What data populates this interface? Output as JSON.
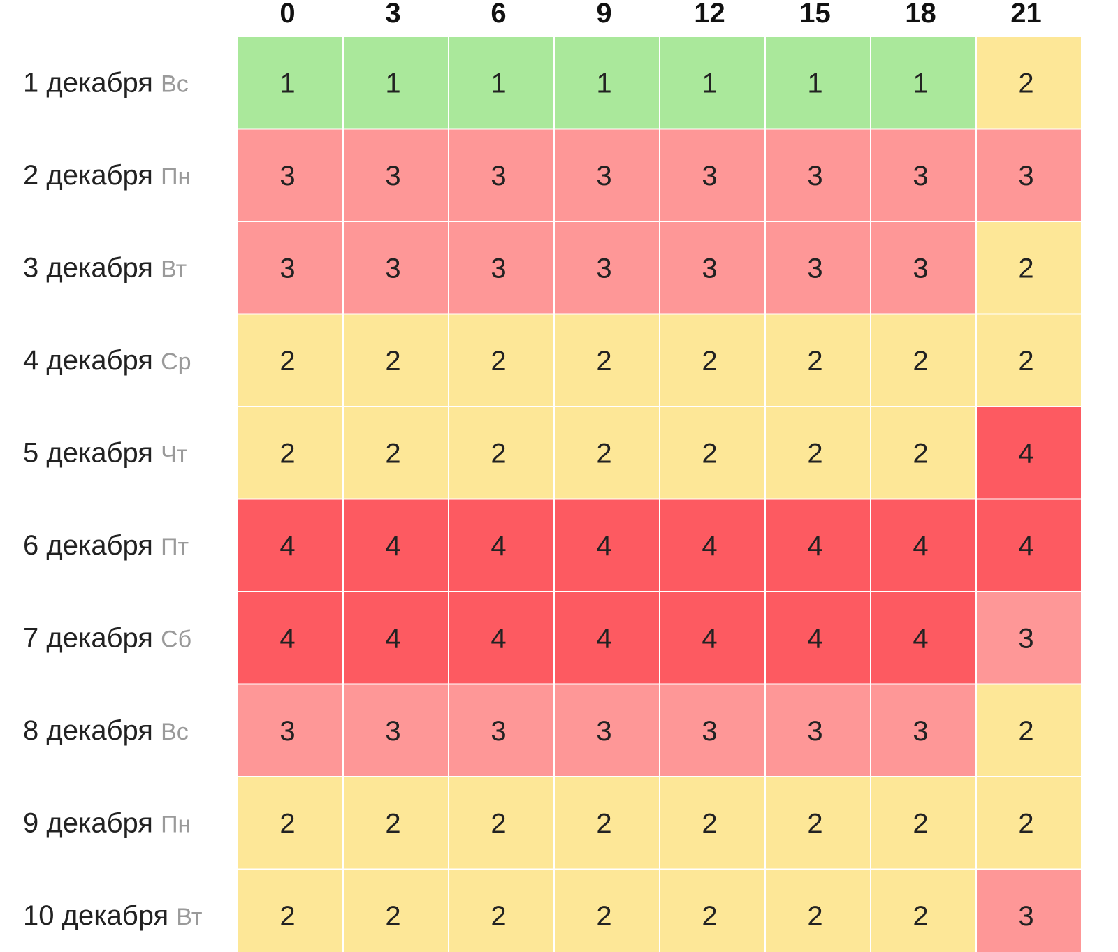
{
  "chart_data": {
    "type": "heatmap",
    "x_categories": [
      "0",
      "3",
      "6",
      "9",
      "12",
      "15",
      "18",
      "21"
    ],
    "rows": [
      {
        "day": "1 декабря",
        "weekday": "Вс",
        "values": [
          1,
          1,
          1,
          1,
          1,
          1,
          1,
          2
        ]
      },
      {
        "day": "2 декабря",
        "weekday": "Пн",
        "values": [
          3,
          3,
          3,
          3,
          3,
          3,
          3,
          3
        ]
      },
      {
        "day": "3 декабря",
        "weekday": "Вт",
        "values": [
          3,
          3,
          3,
          3,
          3,
          3,
          3,
          2
        ]
      },
      {
        "day": "4 декабря",
        "weekday": "Ср",
        "values": [
          2,
          2,
          2,
          2,
          2,
          2,
          2,
          2
        ]
      },
      {
        "day": "5 декабря",
        "weekday": "Чт",
        "values": [
          2,
          2,
          2,
          2,
          2,
          2,
          2,
          4
        ]
      },
      {
        "day": "6 декабря",
        "weekday": "Пт",
        "values": [
          4,
          4,
          4,
          4,
          4,
          4,
          4,
          4
        ]
      },
      {
        "day": "7 декабря",
        "weekday": "Сб",
        "values": [
          4,
          4,
          4,
          4,
          4,
          4,
          4,
          3
        ]
      },
      {
        "day": "8 декабря",
        "weekday": "Вс",
        "values": [
          3,
          3,
          3,
          3,
          3,
          3,
          3,
          2
        ]
      },
      {
        "day": "9 декабря",
        "weekday": "Пн",
        "values": [
          2,
          2,
          2,
          2,
          2,
          2,
          2,
          2
        ]
      },
      {
        "day": "10 декабря",
        "weekday": "Вт",
        "values": [
          2,
          2,
          2,
          2,
          2,
          2,
          2,
          3
        ]
      }
    ],
    "color_scale": {
      "1": "#aae89b",
      "2": "#fde797",
      "3": "#fe9797",
      "4": "#fd5a61"
    }
  }
}
